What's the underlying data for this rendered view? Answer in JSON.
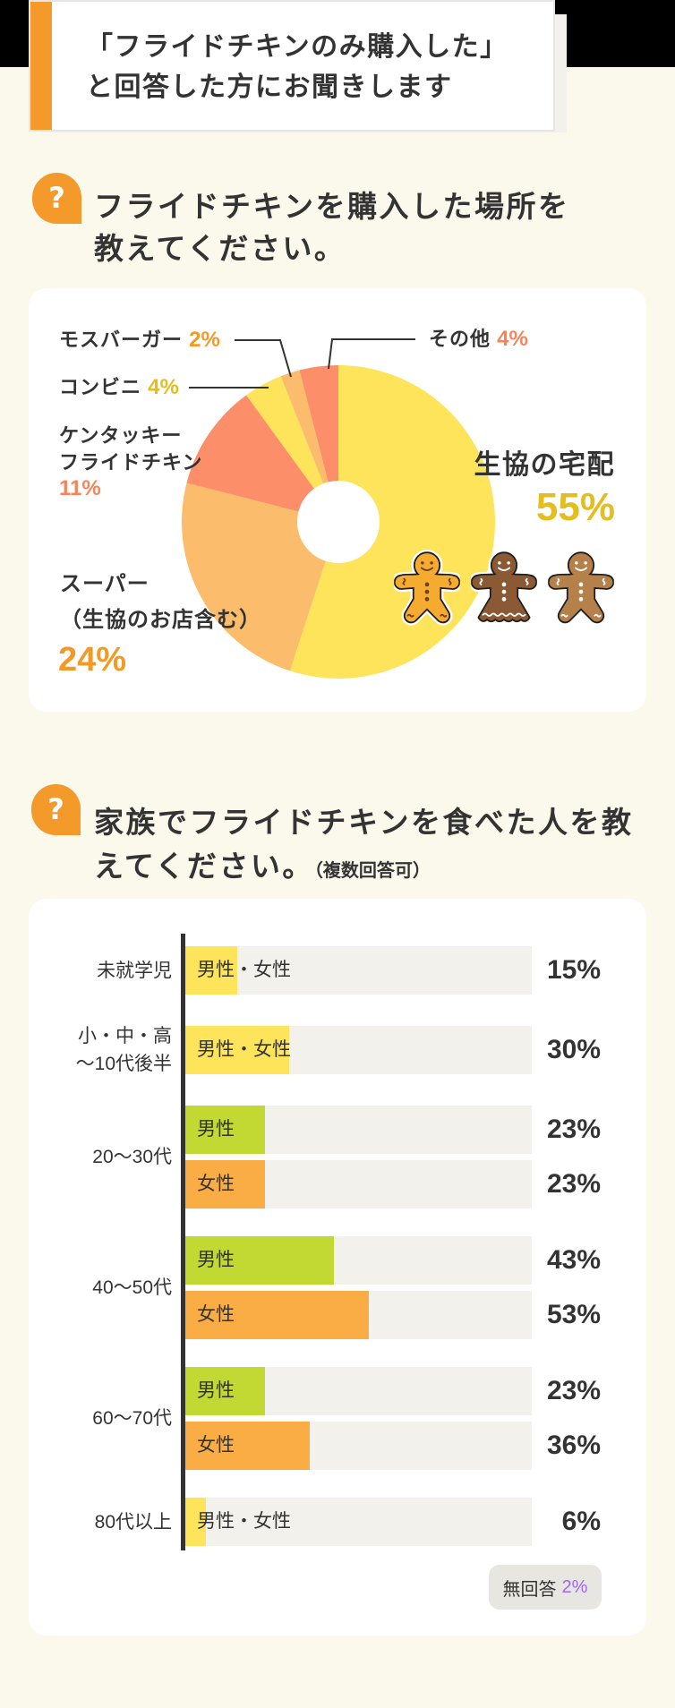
{
  "header": {
    "title_line1": "「フライドチキンのみ購入した」",
    "title_line2": "と回答した方にお聞きします"
  },
  "question1": {
    "icon": "question-icon",
    "icon_glyph": "?",
    "title_line1": "フライドチキンを購入した場所を",
    "title_line2": "教えてください。",
    "labels": {
      "coop_delivery": {
        "name": "生協の宅配",
        "pct": "55%"
      },
      "supermarket": {
        "name_line1": "スーパー",
        "name_line2": "（生協のお店含む）",
        "pct": "24%"
      },
      "kfc": {
        "name_line1": "ケンタッキー",
        "name_line2": "フライドチキン",
        "pct": "11%"
      },
      "convenience": {
        "name": "コンビニ",
        "pct": "4%"
      },
      "mos_burger": {
        "name": "モスバーガー",
        "pct": "2%"
      },
      "other": {
        "name": "その他",
        "pct": "4%"
      }
    },
    "decorations": [
      "gingerbread-man-orange-icon",
      "gingerbread-girl-brown-icon",
      "gingerbread-man-tan-icon"
    ]
  },
  "question2": {
    "icon": "question-icon",
    "icon_glyph": "?",
    "title_line1": "家族でフライドチキンを食べた人を教",
    "title_line2": "えてください。",
    "title_note": "（複数回答可）",
    "no_answer": {
      "label": "無回答",
      "pct": "2%"
    }
  },
  "theme": {
    "bg_cream": "#fbf8ec",
    "accent_orange": "#f39a2a",
    "pct_orange": "#f39a25",
    "pct_gold": "#e4bd1e",
    "pct_salmon": "#f5845a",
    "pct_purple": "#9a6af0",
    "bar_track": "#f2f1ec",
    "badge_bg": "#e8e6e1",
    "gingerbread_orange": "#f5aa30",
    "gingerbread_brown": "#8b5a34",
    "gingerbread_tan": "#b5804a"
  },
  "chart_data": [
    {
      "type": "pie",
      "title": "フライドチキンを購入した場所を教えてください。",
      "categories": [
        "生協の宅配",
        "スーパー（生協のお店含む）",
        "ケンタッキーフライドチキン",
        "コンビニ",
        "モスバーガー",
        "その他"
      ],
      "values": [
        55,
        24,
        11,
        4,
        2,
        4
      ],
      "unit": "%",
      "colors": [
        "#fde45a",
        "#fbbd6b",
        "#fc8f6a",
        "#fde45a",
        "#fbbd6b",
        "#fc8f6a"
      ],
      "start_angle": "12 o'clock, clockwise",
      "donut": true,
      "inner_radius_ratio": 0.263
    },
    {
      "type": "bar",
      "orientation": "horizontal",
      "title": "家族でフライドチキンを食べた人を教えてください。（複数回答可）",
      "unit": "%",
      "xlim": [
        0,
        100
      ],
      "categories": [
        "未就学児",
        "小・中・高～10代後半",
        "20～30代",
        "40～50代",
        "60～70代",
        "80代以上"
      ],
      "series": [
        {
          "name": "男性・女性",
          "values": [
            15,
            30,
            null,
            null,
            null,
            6
          ]
        },
        {
          "name": "男性",
          "values": [
            null,
            null,
            23,
            43,
            23,
            null
          ]
        },
        {
          "name": "女性",
          "values": [
            null,
            null,
            23,
            53,
            36,
            null
          ]
        }
      ],
      "series_colors": {
        "男性・女性": "#fde45a",
        "男性": "#c1d932",
        "女性": "#fbad45"
      },
      "groups": [
        {
          "label": "未就学児",
          "bars": [
            {
              "series": "男性・女性",
              "value": 15,
              "display": "15%",
              "color": "#fde45a"
            }
          ]
        },
        {
          "label": "小・中・高～10代後半",
          "label_lines": [
            "小・中・高",
            "～10代後半"
          ],
          "bars": [
            {
              "series": "男性・女性",
              "value": 30,
              "display": "30%",
              "color": "#fde45a"
            }
          ]
        },
        {
          "label": "20～30代",
          "bars": [
            {
              "series": "男性",
              "value": 23,
              "display": "23%",
              "color": "#c1d932"
            },
            {
              "series": "女性",
              "value": 23,
              "display": "23%",
              "color": "#fbad45"
            }
          ]
        },
        {
          "label": "40～50代",
          "bars": [
            {
              "series": "男性",
              "value": 43,
              "display": "43%",
              "color": "#c1d932"
            },
            {
              "series": "女性",
              "value": 53,
              "display": "53%",
              "color": "#fbad45"
            }
          ]
        },
        {
          "label": "60～70代",
          "bars": [
            {
              "series": "男性",
              "value": 23,
              "display": "23%",
              "color": "#c1d932"
            },
            {
              "series": "女性",
              "value": 36,
              "display": "36%",
              "color": "#fbad45"
            }
          ]
        },
        {
          "label": "80代以上",
          "bars": [
            {
              "series": "男性・女性",
              "value": 6,
              "display": "6%",
              "color": "#fde45a"
            }
          ]
        }
      ],
      "annotation": "無回答 2%"
    }
  ]
}
